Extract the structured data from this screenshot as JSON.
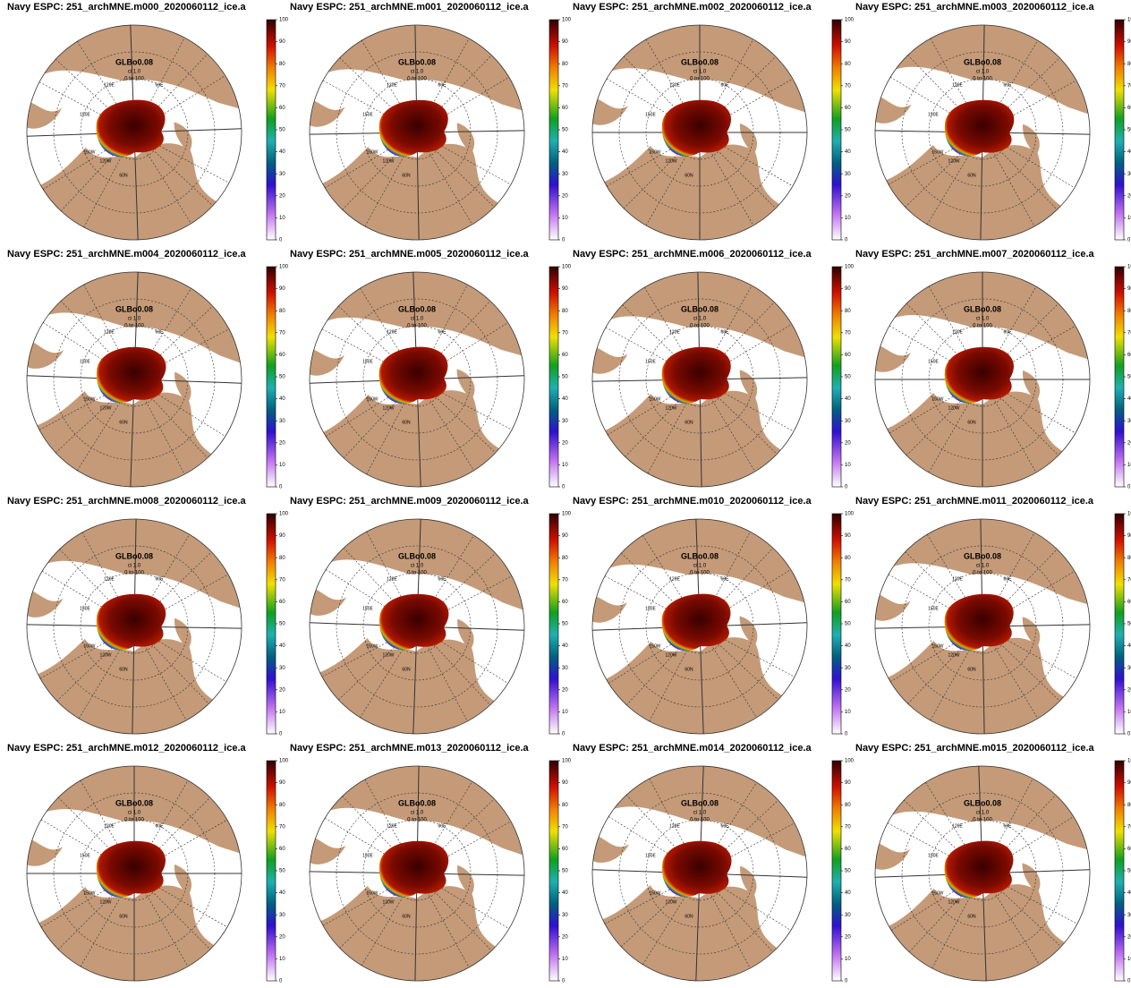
{
  "panels": [
    {
      "title": "Navy ESPC: 251_archMNE.m000_2020060112_ice.a"
    },
    {
      "title": "Navy ESPC: 251_archMNE.m001_2020060112_ice.a"
    },
    {
      "title": "Navy ESPC: 251_archMNE.m002_2020060112_ice.a"
    },
    {
      "title": "Navy ESPC: 251_archMNE.m003_2020060112_ice.a"
    },
    {
      "title": "Navy ESPC: 251_archMNE.m004_2020060112_ice.a"
    },
    {
      "title": "Navy ESPC: 251_archMNE.m005_2020060112_ice.a"
    },
    {
      "title": "Navy ESPC: 251_archMNE.m006_2020060112_ice.a"
    },
    {
      "title": "Navy ESPC: 251_archMNE.m007_2020060112_ice.a"
    },
    {
      "title": "Navy ESPC: 251_archMNE.m008_2020060112_ice.a"
    },
    {
      "title": "Navy ESPC: 251_archMNE.m009_2020060112_ice.a"
    },
    {
      "title": "Navy ESPC: 251_archMNE.m010_2020060112_ice.a"
    },
    {
      "title": "Navy ESPC: 251_archMNE.m011_2020060112_ice.a"
    },
    {
      "title": "Navy ESPC: 251_archMNE.m012_2020060112_ice.a"
    },
    {
      "title": "Navy ESPC: 251_archMNE.m013_2020060112_ice.a"
    },
    {
      "title": "Navy ESPC: 251_archMNE.m014_2020060112_ice.a"
    },
    {
      "title": "Navy ESPC: 251_archMNE.m015_2020060112_ice.a"
    }
  ],
  "map_labels": {
    "region": "GLBo0.08",
    "interval": "ci 1.0",
    "range": "0 to 100"
  },
  "longitude_labels": [
    "120E",
    "60E",
    "150E",
    "150W",
    "120W",
    "60N"
  ],
  "colorbar": {
    "ticks": [
      0,
      10,
      20,
      30,
      40,
      50,
      60,
      70,
      80,
      90,
      100
    ],
    "range": [
      0,
      100
    ]
  }
}
